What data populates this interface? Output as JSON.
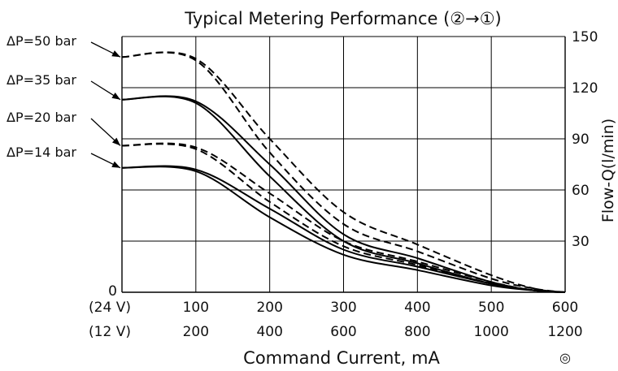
{
  "chart_data": {
    "type": "line",
    "title": "Typical Metering Performance (②→①)",
    "xlabel": "Command Current, mA",
    "ylabel": "Flow-Q(l/min)",
    "x_ticks_24v": [
      "(24 V)",
      "100",
      "200",
      "300",
      "400",
      "500",
      "600"
    ],
    "x_ticks_12v": [
      "(12 V)",
      "200",
      "400",
      "600",
      "800",
      "1000",
      "1200"
    ],
    "y_origin_label": "0",
    "y_ticks": [
      "30",
      "60",
      "90",
      "120",
      "150"
    ],
    "xlim": [
      0,
      600
    ],
    "ylim": [
      0,
      150
    ],
    "grid": true,
    "annotations": [
      "ΔP=50 bar",
      "ΔP=35 bar",
      "ΔP=20 bar",
      "ΔP=14 bar"
    ],
    "logo_glyph": "◎",
    "series": [
      {
        "name": "ΔP=50 bar",
        "style": "dashed",
        "x": [
          0,
          100,
          200,
          300,
          400,
          500,
          560,
          600
        ],
        "y": [
          138,
          137,
          90,
          47,
          28,
          10,
          2,
          0
        ]
      },
      {
        "name": "ΔP=50 bar",
        "style": "dashed",
        "x": [
          0,
          100,
          200,
          300,
          400,
          500,
          560,
          600
        ],
        "y": [
          138,
          136,
          82,
          40,
          24,
          8,
          2,
          0
        ]
      },
      {
        "name": "ΔP=35 bar",
        "style": "solid",
        "x": [
          0,
          100,
          200,
          300,
          400,
          500,
          560,
          600
        ],
        "y": [
          113,
          112,
          75,
          34,
          20,
          6,
          1,
          0
        ]
      },
      {
        "name": "ΔP=35 bar",
        "style": "solid",
        "x": [
          0,
          100,
          200,
          300,
          400,
          500,
          560,
          600
        ],
        "y": [
          113,
          111,
          68,
          30,
          17,
          5,
          1,
          0
        ]
      },
      {
        "name": "ΔP=20 bar",
        "style": "dashed",
        "x": [
          0,
          100,
          200,
          300,
          400,
          500,
          560,
          600
        ],
        "y": [
          86,
          85,
          58,
          30,
          18,
          6,
          1,
          0
        ]
      },
      {
        "name": "ΔP=20 bar",
        "style": "dashed",
        "x": [
          0,
          100,
          200,
          300,
          400,
          500,
          560,
          600
        ],
        "y": [
          86,
          84,
          53,
          27,
          16,
          5,
          1,
          0
        ]
      },
      {
        "name": "ΔP=14 bar",
        "style": "solid",
        "x": [
          0,
          100,
          200,
          300,
          400,
          500,
          560,
          600
        ],
        "y": [
          73,
          72,
          49,
          25,
          15,
          5,
          1,
          0
        ]
      },
      {
        "name": "ΔP=14 bar",
        "style": "solid",
        "x": [
          0,
          100,
          200,
          300,
          400,
          500,
          560,
          600
        ],
        "y": [
          73,
          71,
          44,
          22,
          13,
          4,
          1,
          0
        ]
      }
    ]
  }
}
